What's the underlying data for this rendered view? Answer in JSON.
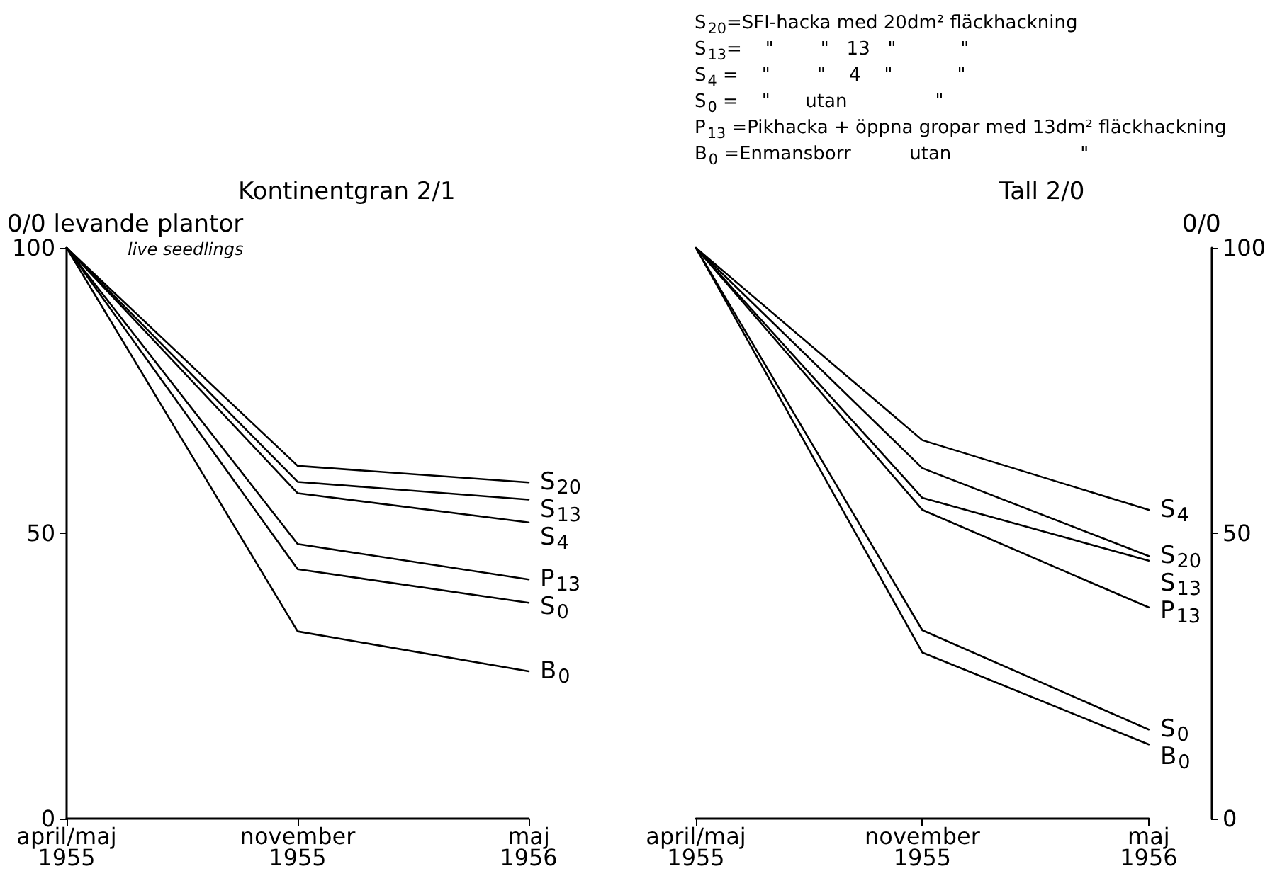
{
  "chart_data": [
    {
      "type": "line",
      "title": "Kontinentgran 2/1",
      "ylabel": "0/0 levande plantor",
      "subtitle": "live seedlings",
      "categories": [
        "april/maj\n1955",
        "november\n1955",
        "maj\n1956"
      ],
      "ylim": [
        0,
        100
      ],
      "yticks": [
        0,
        50,
        100
      ],
      "grid": false,
      "legend": false,
      "marker": "none",
      "line_style": "solid",
      "annotations": [
        "S$_{20}$=SFI-hacka med 20dm² fläckhackning",
        "S$_{13}$=    \"        \"   13   \"           \"",
        "S$_{4}$ =    \"        \"    4    \"           \"",
        "S$_{0}$ =    \"      utan               \"",
        "P$_{13}$ =Pikhacka + öppna gropar med 13dm² fläckhackning",
        "B$_{0}$ =Enmansborr          utan                      \""
      ],
      "series": [
        {
          "name": "S$_{20}$",
          "color": "#000000",
          "values": [
            100,
            61.8,
            58.9
          ]
        },
        {
          "name": "S$_{13}$",
          "color": "#000000",
          "values": [
            100,
            59.0,
            55.9
          ]
        },
        {
          "name": "S$_{4}$",
          "color": "#000000",
          "values": [
            100,
            57.0,
            51.9
          ]
        },
        {
          "name": "P$_{13}$",
          "color": "#000000",
          "values": [
            100,
            48.1,
            41.9
          ]
        },
        {
          "name": "S$_{0}$",
          "color": "#000000",
          "values": [
            100,
            43.7,
            37.8
          ]
        },
        {
          "name": "B$_{0}$",
          "color": "#000000",
          "values": [
            100,
            32.8,
            25.8
          ]
        }
      ]
    },
    {
      "type": "line",
      "title": "Tall 2/0",
      "ylabel": "0/0",
      "categories": [
        "april/maj\n1955",
        "november\n1955",
        "maj\n1956"
      ],
      "ylim": [
        0,
        100
      ],
      "yticks": [
        0,
        50,
        100
      ],
      "grid": false,
      "legend": false,
      "marker": "none",
      "line_style": "solid",
      "series": [
        {
          "name": "S$_{4}$",
          "color": "#000000",
          "values": [
            100,
            66.3,
            54.1
          ]
        },
        {
          "name": "S$_{20}$",
          "color": "#000000",
          "values": [
            100,
            61.4,
            46.0
          ]
        },
        {
          "name": "S$_{13}$",
          "color": "#000000",
          "values": [
            100,
            56.2,
            45.2
          ]
        },
        {
          "name": "P$_{13}$",
          "color": "#000000",
          "values": [
            100,
            54.1,
            37.0
          ]
        },
        {
          "name": "S$_{0}$",
          "color": "#000000",
          "values": [
            100,
            33.0,
            15.6
          ]
        },
        {
          "name": "B$_{0}$",
          "color": "#000000",
          "values": [
            100,
            29.1,
            13.0
          ]
        }
      ]
    }
  ]
}
